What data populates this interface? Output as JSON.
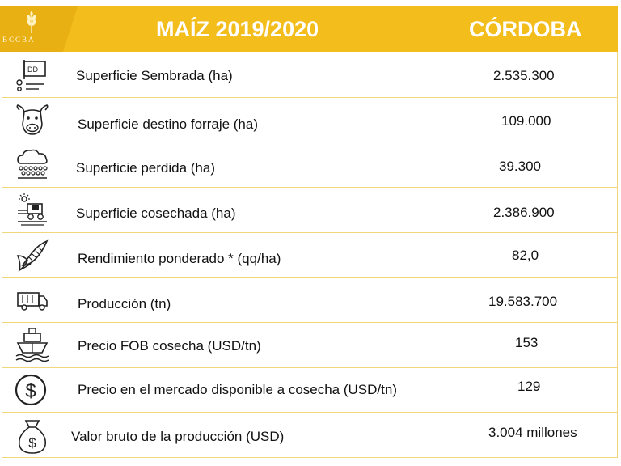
{
  "header": {
    "logo_text": "BCCBA",
    "title": "MAÍZ 2019/2020",
    "region": "CÓRDOBA",
    "accent": "#f3bd1c"
  },
  "rows": [
    {
      "label": "Superficie Sembrada (ha)",
      "value": "2.535.300",
      "icon": "planter-icon"
    },
    {
      "label": "Superficie destino forraje (ha)",
      "value": "109.000",
      "icon": "cow-icon"
    },
    {
      "label": "Superficie perdida (ha)",
      "value": "39.300",
      "icon": "storm-cloud-icon"
    },
    {
      "label": "Superficie cosechada (ha)",
      "value": "2.386.900",
      "icon": "harvester-icon"
    },
    {
      "label": "Rendimiento ponderado * (qq/ha)",
      "value": "82,0",
      "icon": "corn-icon"
    },
    {
      "label": "Producción (tn)",
      "value": "19.583.700",
      "icon": "truck-icon"
    },
    {
      "label": "Precio FOB cosecha (USD/tn)",
      "value": "153",
      "icon": "ship-icon"
    },
    {
      "label": "Precio en el mercado disponible a cosecha (USD/tn)",
      "value": "129",
      "icon": "dollar-coin-icon"
    },
    {
      "label": "Valor bruto de la producción (USD)",
      "value": "3.004 millones",
      "icon": "money-bag-icon"
    }
  ]
}
